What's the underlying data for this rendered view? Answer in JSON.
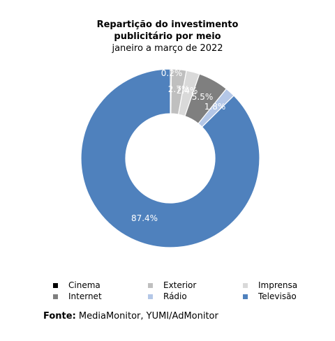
{
  "chart_data": {
    "type": "pie",
    "title": "Repartição do investimento publicitário por meio",
    "subtitle": "janeiro a março de 2022",
    "categories": [
      "Cinema",
      "Exterior",
      "Imprensa",
      "Internet",
      "Rádio",
      "Televisão"
    ],
    "values": [
      0.2,
      2.7,
      2.4,
      5.5,
      1.8,
      87.4
    ],
    "data_labels": [
      "0.2%",
      "2.7%",
      "2.4%",
      "5.5%",
      "1.8%",
      "87.4%"
    ],
    "colors": [
      "#000000",
      "#BFBFBF",
      "#D9D9D9",
      "#7F7F7F",
      "#B4C7E7",
      "#4F81BD"
    ],
    "legend_position": "bottom",
    "donut": true
  },
  "title_line1": "Repartição do investimento",
  "title_line2": "publicitário por meio",
  "subtitle": "janeiro a março de 2022",
  "source_label": "Fonte:",
  "source_text": " MediaMonitor, YUMI/AdMonitor"
}
